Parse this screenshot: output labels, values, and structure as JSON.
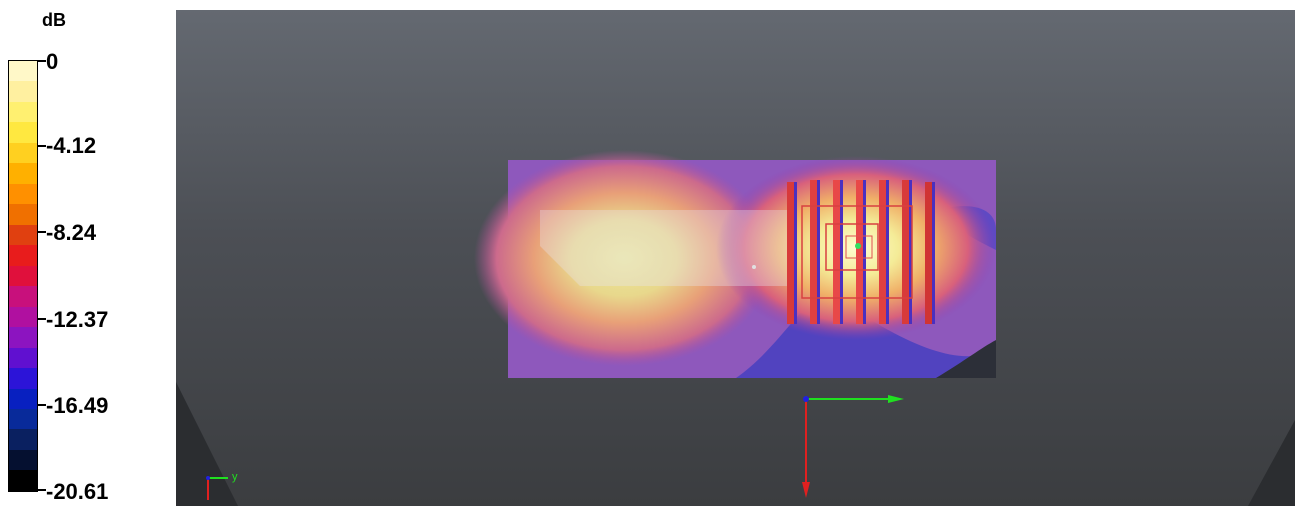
{
  "legend": {
    "unit": "dB",
    "ticks": [
      "0",
      "-4.12",
      "-8.24",
      "-12.37",
      "-16.49",
      "-20.61"
    ],
    "colors": [
      "#fff8c8",
      "#fff0a0",
      "#fff070",
      "#ffe840",
      "#ffd020",
      "#ffb000",
      "#ff9000",
      "#f07000",
      "#e04010",
      "#e81c1c",
      "#e0103c",
      "#c8107c",
      "#b010a0",
      "#8c14c0",
      "#6010d0",
      "#2c14d8",
      "#0820c0",
      "#082a9a",
      "#0a2060",
      "#051030",
      "#000000"
    ]
  },
  "viewport": {
    "background_top": "#646971",
    "background_bottom": "#3b3d40",
    "axes": {
      "x_color": "#20e020",
      "y_color": "#e02020",
      "z_color": "#2020e0"
    },
    "mini_axes_label": "y"
  }
}
